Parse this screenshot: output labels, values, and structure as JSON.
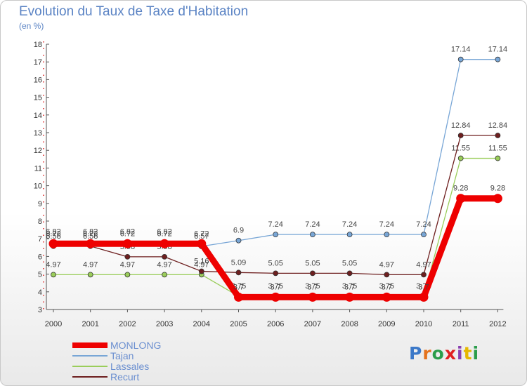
{
  "title": "Evolution du Taux de Taxe d'Habitation",
  "subtitle": "(en %)",
  "brand": "Proxiti",
  "chart_data": {
    "type": "line",
    "x": [
      "2000",
      "2001",
      "2002",
      "2003",
      "2004",
      "2005",
      "2006",
      "2007",
      "2008",
      "2009",
      "2010",
      "2011",
      "2012"
    ],
    "ylim": [
      3,
      18
    ],
    "yticks": [
      3,
      4,
      5,
      6,
      7,
      8,
      9,
      10,
      11,
      12,
      13,
      14,
      15,
      16,
      17,
      18
    ],
    "grid": false,
    "legend_position": "bottom-left",
    "series": [
      {
        "name": "Lassales",
        "color": "#9acd5a",
        "values": [
          4.97,
          4.97,
          4.97,
          4.97,
          4.97,
          3.75,
          3.75,
          3.75,
          3.75,
          3.75,
          3.75,
          11.55,
          11.55
        ],
        "labels": [
          "4.97",
          "4.97",
          "4.97",
          "4.97",
          "4.97",
          "3.75",
          "3.75",
          "3.75",
          "3.75",
          "3.75",
          "3.75",
          "11.55",
          "11.55"
        ]
      },
      {
        "name": "Recurt",
        "color": "#6e1f1f",
        "values": [
          6.58,
          6.58,
          5.98,
          5.98,
          5.16,
          5.09,
          5.05,
          5.05,
          5.05,
          4.97,
          4.97,
          12.84,
          12.84
        ],
        "labels": [
          "6.58",
          "6.58",
          "5.98",
          "5.98",
          "5.16",
          "5.09",
          "5.05",
          "5.05",
          "5.05",
          "4.97",
          "4.97",
          "12.84",
          "12.84"
        ]
      },
      {
        "name": "Tajan",
        "color": "#78a6d6",
        "values": [
          6.82,
          6.82,
          6.82,
          6.82,
          6.57,
          6.9,
          7.24,
          7.24,
          7.24,
          7.24,
          7.24,
          17.14,
          17.14
        ],
        "labels": [
          "6.82",
          "6.82",
          "6.82",
          "6.82",
          "6.57",
          "6.9",
          "7.24",
          "7.24",
          "7.24",
          "7.24",
          "7.24",
          "17.14",
          "17.14"
        ]
      },
      {
        "name": "MONLONG",
        "color": "#ee0000",
        "values": [
          6.72,
          6.72,
          6.72,
          6.72,
          6.72,
          3.7,
          3.7,
          3.7,
          3.7,
          3.7,
          3.7,
          9.28,
          9.28
        ],
        "labels": [
          "6.72",
          "6.72",
          "6.72",
          "6.72",
          "6.72",
          "3.7",
          "3.7",
          "3.7",
          "3.7",
          "3.7",
          "3.7",
          "9.28",
          "9.28"
        ]
      }
    ]
  }
}
